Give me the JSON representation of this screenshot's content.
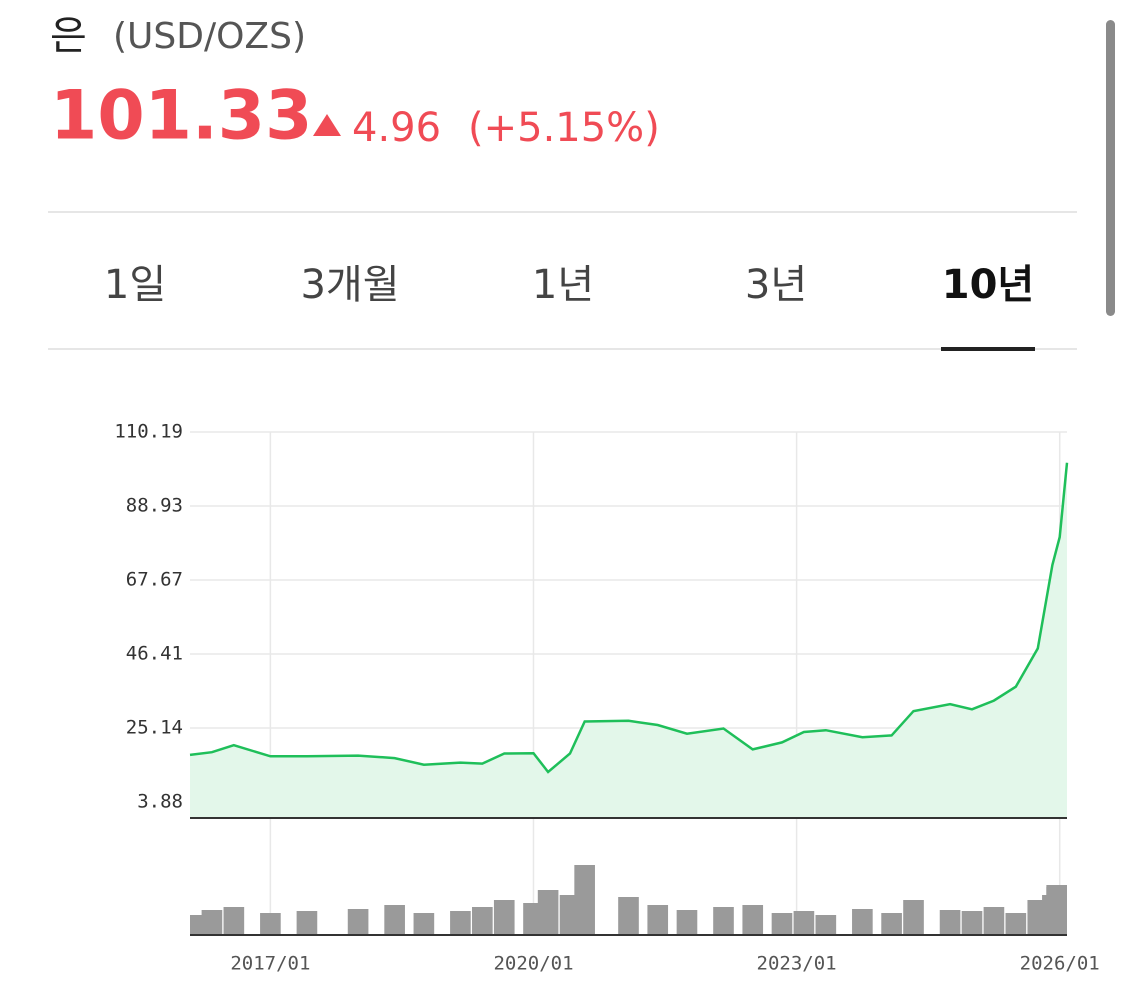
{
  "header": {
    "title": "은",
    "unit": "(USD/OZS)",
    "price": "101.33",
    "change": "4.96",
    "change_pct": "(+5.15%)"
  },
  "tabs": {
    "items": [
      "1일",
      "3개월",
      "1년",
      "3년",
      "10년"
    ],
    "active": 4
  },
  "chart_data": {
    "type": "line",
    "color": "#1fbf5a",
    "area_color": "#e3f7ea",
    "grid": true,
    "x": [
      "2016/02",
      "2016/05",
      "2016/08",
      "2017/01",
      "2017/06",
      "2018/01",
      "2018/06",
      "2018/10",
      "2019/03",
      "2019/06",
      "2019/09",
      "2020/01",
      "2020/03",
      "2020/06",
      "2020/08",
      "2021/02",
      "2021/06",
      "2021/10",
      "2022/03",
      "2022/07",
      "2022/11",
      "2023/02",
      "2023/05",
      "2023/10",
      "2024/02",
      "2024/05",
      "2024/10",
      "2025/01",
      "2025/04",
      "2025/07",
      "2025/10",
      "2025/12",
      "2026/01",
      "2026/02"
    ],
    "values": [
      17.4,
      18.2,
      20.2,
      17.0,
      17.0,
      17.2,
      16.5,
      14.6,
      15.2,
      14.9,
      17.8,
      17.9,
      12.5,
      17.8,
      27.0,
      27.2,
      26.0,
      23.5,
      25.0,
      19.0,
      21.0,
      24.0,
      24.5,
      22.5,
      23.0,
      30.0,
      32.0,
      30.5,
      33.0,
      37.0,
      48.0,
      72.0,
      80.0,
      101.33
    ],
    "volume": [
      20,
      25,
      28,
      22,
      24,
      26,
      30,
      22,
      24,
      28,
      35,
      32,
      45,
      40,
      70,
      38,
      30,
      25,
      28,
      30,
      22,
      24,
      20,
      26,
      22,
      35,
      25,
      24,
      28,
      22,
      35,
      40,
      48,
      50
    ],
    "volume_color": "#9a9a9a",
    "volume_lim": [
      0,
      110
    ],
    "xlim": [
      "2016/02",
      "2026/02"
    ],
    "xticks": [
      "2017/01",
      "2020/01",
      "2023/01",
      "2026/01"
    ],
    "ylim": [
      -0.72,
      110.19
    ],
    "yticks": [
      3.88,
      25.14,
      46.41,
      67.67,
      88.93,
      110.19
    ]
  }
}
